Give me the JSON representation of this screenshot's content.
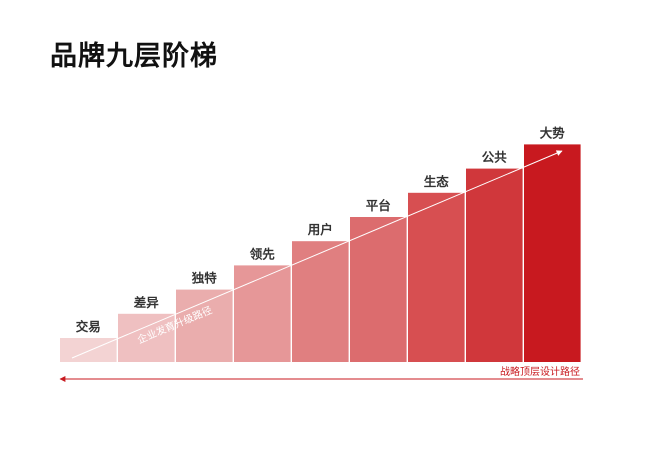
{
  "title": "品牌九层阶梯",
  "steps": [
    {
      "label": "交易",
      "color": "#f3d3d3"
    },
    {
      "label": "差异",
      "color": "#efc0c1"
    },
    {
      "label": "独特",
      "color": "#eaadad"
    },
    {
      "label": "领先",
      "color": "#e69798"
    },
    {
      "label": "用户",
      "color": "#e07f80"
    },
    {
      "label": "平台",
      "color": "#dc6c6e"
    },
    {
      "label": "生态",
      "color": "#d74f51"
    },
    {
      "label": "公共",
      "color": "#d0373b"
    },
    {
      "label": "大势",
      "color": "#c8191f"
    }
  ],
  "diagonal_label": "企业发育升级路径",
  "bottom_label": "战略顶层设计路径",
  "accent_color": "#c8191f"
}
